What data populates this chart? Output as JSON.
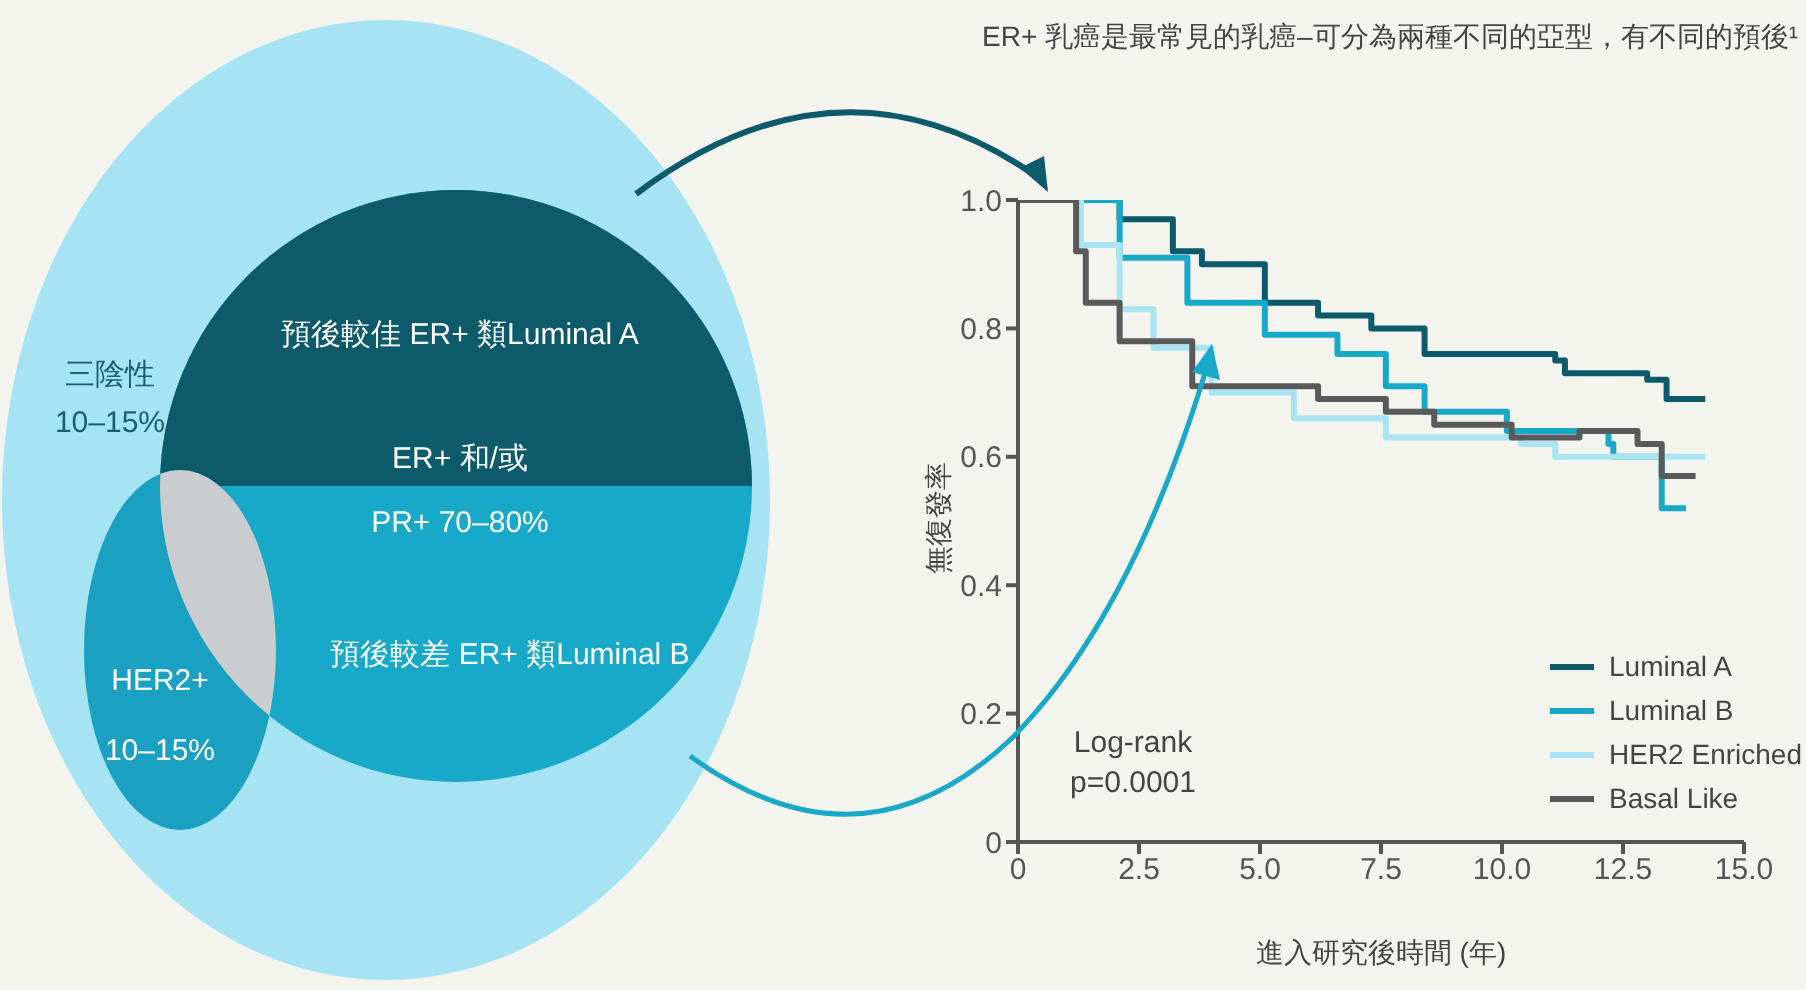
{
  "chart_data": {
    "type": "step",
    "title": "ER+ 乳癌是最常見的乳癌–可分為兩種不同的亞型，有不同的預後¹",
    "xlabel": "進入研究後時間 (年)",
    "ylabel": "無復發率",
    "xlim": [
      0,
      15
    ],
    "xticks": [
      0,
      2.5,
      {
        "value": 5,
        "label": "5.0"
      },
      7.5,
      {
        "value": 10,
        "label": "10.0"
      },
      12.5,
      {
        "value": 15,
        "label": "15.0"
      }
    ],
    "ylim": [
      0,
      1
    ],
    "yticks": [
      0,
      0.2,
      0.4,
      0.6,
      0.8,
      {
        "value": 1,
        "label": "1.0"
      }
    ],
    "legend": "bottom right",
    "marker": "none",
    "line_style": "solid",
    "annotations": [
      "Log-rank",
      "p=0.0001",
      "預後較佳 ER+ 類Luminal A",
      "ER+ 和/或",
      "PR+ 70–80%",
      "預後較差 ER+ 類Luminal B",
      "三陰性",
      "10–15%",
      "HER2+",
      "10–15%"
    ],
    "series": [
      {
        "name": "Luminal A",
        "color": "#0d5a6a",
        "x": [
          0,
          1.0,
          2.1,
          3.2,
          3.8,
          5.1,
          6.2,
          7.3,
          8.4,
          11.1,
          11.3,
          13.0,
          13.4,
          14.2
        ],
        "values": [
          1.0,
          1.0,
          0.97,
          0.92,
          0.9,
          0.84,
          0.82,
          0.8,
          0.76,
          0.75,
          0.73,
          0.72,
          0.69,
          0.69
        ]
      },
      {
        "name": "Luminal B",
        "color": "#19a9c8",
        "x": [
          0,
          1.0,
          2.1,
          3.5,
          5.1,
          6.6,
          7.6,
          8.4,
          10.1,
          12.2,
          12.3,
          13.3,
          13.8
        ],
        "values": [
          1.0,
          1.0,
          0.91,
          0.84,
          0.79,
          0.76,
          0.71,
          0.67,
          0.64,
          0.62,
          0.6,
          0.52,
          0.52
        ]
      },
      {
        "name": "HER2 Enriched",
        "color": "#a8e4f2",
        "x": [
          0,
          0.3,
          1.3,
          2.1,
          2.8,
          4.0,
          5.7,
          7.6,
          10.4,
          11.1,
          14.2
        ],
        "values": [
          1.0,
          1.0,
          0.93,
          0.83,
          0.77,
          0.7,
          0.66,
          0.63,
          0.62,
          0.6,
          0.6
        ]
      },
      {
        "name": "Basal Like",
        "color": "#5a5a5a",
        "x": [
          0,
          0.3,
          1.2,
          1.4,
          2.1,
          3.6,
          6.0,
          6.2,
          7.6,
          8.6,
          10.2,
          11.6,
          12.8,
          13.3,
          14.0
        ],
        "values": [
          1.0,
          1.0,
          0.92,
          0.84,
          0.78,
          0.71,
          0.71,
          0.69,
          0.67,
          0.65,
          0.63,
          0.64,
          0.62,
          0.57,
          0.57
        ]
      }
    ]
  }
}
